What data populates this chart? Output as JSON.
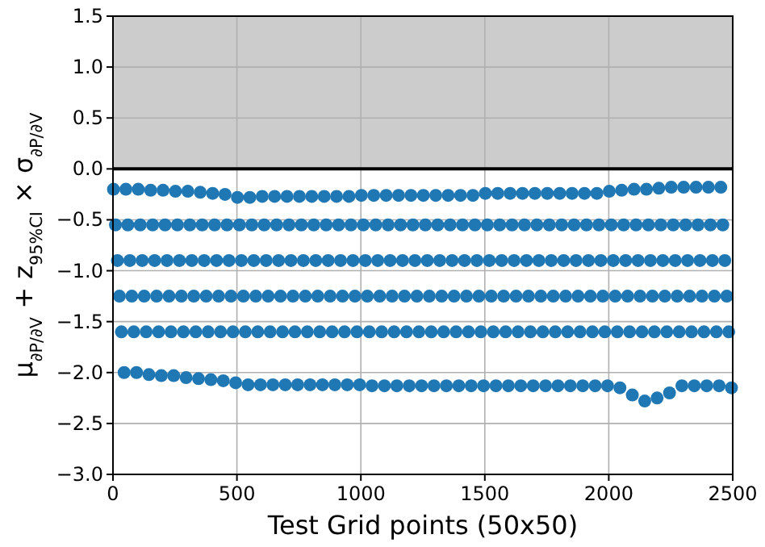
{
  "chart_data": {
    "type": "scatter",
    "xlabel": "Test Grid points (50x50)",
    "ylabel": "μ$_{∂P/∂V}$ + z$_{95%CI}$ × σ$_{∂P/∂V}$",
    "xlim": [
      0,
      2500
    ],
    "xticks": [
      0,
      500,
      1000,
      1500,
      2000,
      2500
    ],
    "ylim": [
      -3.0,
      1.5
    ],
    "yticks": [
      {
        "value": -3,
        "label": "−3.0"
      },
      {
        "value": -2.5,
        "label": "−2.5"
      },
      {
        "value": -2,
        "label": "−2.0"
      },
      {
        "value": -1.5,
        "label": "−1.5"
      },
      {
        "value": -1,
        "label": "−1.0"
      },
      {
        "value": -0.5,
        "label": "−0.5"
      },
      {
        "value": 0,
        "label": "0.0"
      },
      {
        "value": 0.5,
        "label": "0.5"
      },
      {
        "value": 1,
        "label": "1.0"
      },
      {
        "value": 1.5,
        "label": "1.5"
      }
    ],
    "grid": true,
    "marker": "circle",
    "bands": [
      {
        "axis": "y",
        "from": 0,
        "to": 1.5,
        "color": "#cccccc"
      }
    ],
    "ref_lines": [
      {
        "axis": "y",
        "value": 0,
        "color": "#000000"
      }
    ],
    "series": [
      {
        "color": "#1f77b4",
        "x": [
          2,
          10,
          18,
          26,
          34,
          45,
          52,
          60,
          68,
          76,
          84,
          95,
          102,
          110,
          118,
          126,
          134,
          145,
          152,
          160,
          168,
          176,
          184,
          195,
          202,
          210,
          218,
          226,
          234,
          245,
          252,
          260,
          268,
          276,
          284,
          295,
          302,
          310,
          318,
          326,
          334,
          345,
          352,
          360,
          368,
          376,
          384,
          395,
          402,
          410,
          418,
          426,
          434,
          445,
          452,
          460,
          468,
          476,
          484,
          495,
          502,
          510,
          518,
          526,
          534,
          545,
          552,
          560,
          568,
          576,
          584,
          595,
          602,
          610,
          618,
          626,
          634,
          645,
          652,
          660,
          668,
          676,
          684,
          695,
          702,
          710,
          718,
          726,
          734,
          745,
          752,
          760,
          768,
          776,
          784,
          795,
          802,
          810,
          818,
          826,
          834,
          845,
          852,
          860,
          868,
          876,
          884,
          895,
          902,
          910,
          918,
          926,
          934,
          945,
          952,
          960,
          968,
          976,
          984,
          995,
          1002,
          1010,
          1018,
          1026,
          1034,
          1045,
          1052,
          1060,
          1068,
          1076,
          1084,
          1095,
          1102,
          1110,
          1118,
          1126,
          1134,
          1145,
          1152,
          1160,
          1168,
          1176,
          1184,
          1195,
          1202,
          1210,
          1218,
          1226,
          1234,
          1245,
          1252,
          1260,
          1268,
          1276,
          1284,
          1295,
          1302,
          1310,
          1318,
          1326,
          1334,
          1345,
          1352,
          1360,
          1368,
          1376,
          1384,
          1395,
          1402,
          1410,
          1418,
          1426,
          1434,
          1445,
          1452,
          1460,
          1468,
          1476,
          1484,
          1495,
          1502,
          1510,
          1518,
          1526,
          1534,
          1545,
          1552,
          1560,
          1568,
          1576,
          1584,
          1595,
          1602,
          1610,
          1618,
          1626,
          1634,
          1645,
          1652,
          1660,
          1668,
          1676,
          1684,
          1695,
          1702,
          1710,
          1718,
          1726,
          1734,
          1745,
          1752,
          1760,
          1768,
          1776,
          1784,
          1795,
          1802,
          1810,
          1818,
          1826,
          1834,
          1845,
          1852,
          1860,
          1868,
          1876,
          1884,
          1895,
          1902,
          1910,
          1918,
          1926,
          1934,
          1945,
          1952,
          1960,
          1968,
          1976,
          1984,
          1995,
          2002,
          2010,
          2018,
          2026,
          2034,
          2045,
          2052,
          2060,
          2068,
          2076,
          2084,
          2095,
          2102,
          2110,
          2118,
          2126,
          2134,
          2145,
          2152,
          2160,
          2168,
          2176,
          2184,
          2195,
          2202,
          2210,
          2218,
          2226,
          2234,
          2245,
          2252,
          2260,
          2268,
          2276,
          2284,
          2295,
          2302,
          2310,
          2318,
          2326,
          2334,
          2345,
          2352,
          2360,
          2368,
          2376,
          2384,
          2395,
          2402,
          2410,
          2418,
          2426,
          2434,
          2445,
          2452,
          2460,
          2468,
          2476,
          2484,
          2495
        ],
        "values": [
          -0.2,
          -0.55,
          -0.9,
          -1.25,
          -1.6,
          -2.0,
          -0.2,
          -0.55,
          -0.9,
          -1.25,
          -1.6,
          -2.0,
          -0.2,
          -0.55,
          -0.9,
          -1.25,
          -1.6,
          -2.02,
          -0.21,
          -0.55,
          -0.9,
          -1.25,
          -1.6,
          -2.03,
          -0.21,
          -0.55,
          -0.9,
          -1.25,
          -1.6,
          -2.03,
          -0.22,
          -0.55,
          -0.9,
          -1.25,
          -1.6,
          -2.05,
          -0.22,
          -0.55,
          -0.9,
          -1.25,
          -1.6,
          -2.06,
          -0.23,
          -0.55,
          -0.9,
          -1.25,
          -1.6,
          -2.07,
          -0.24,
          -0.55,
          -0.9,
          -1.25,
          -1.6,
          -2.08,
          -0.25,
          -0.55,
          -0.9,
          -1.25,
          -1.6,
          -2.1,
          -0.28,
          -0.55,
          -0.9,
          -1.25,
          -1.6,
          -2.12,
          -0.28,
          -0.55,
          -0.9,
          -1.25,
          -1.6,
          -2.12,
          -0.27,
          -0.55,
          -0.9,
          -1.25,
          -1.6,
          -2.12,
          -0.27,
          -0.55,
          -0.9,
          -1.25,
          -1.6,
          -2.12,
          -0.27,
          -0.55,
          -0.9,
          -1.25,
          -1.6,
          -2.12,
          -0.27,
          -0.55,
          -0.9,
          -1.25,
          -1.6,
          -2.12,
          -0.27,
          -0.55,
          -0.9,
          -1.25,
          -1.6,
          -2.12,
          -0.27,
          -0.55,
          -0.9,
          -1.25,
          -1.6,
          -2.12,
          -0.27,
          -0.55,
          -0.9,
          -1.25,
          -1.6,
          -2.12,
          -0.27,
          -0.55,
          -0.9,
          -1.25,
          -1.6,
          -2.12,
          -0.26,
          -0.55,
          -0.9,
          -1.25,
          -1.6,
          -2.13,
          -0.26,
          -0.55,
          -0.9,
          -1.25,
          -1.6,
          -2.13,
          -0.26,
          -0.55,
          -0.9,
          -1.25,
          -1.6,
          -2.13,
          -0.26,
          -0.55,
          -0.9,
          -1.25,
          -1.6,
          -2.13,
          -0.26,
          -0.55,
          -0.9,
          -1.25,
          -1.6,
          -2.13,
          -0.26,
          -0.55,
          -0.9,
          -1.25,
          -1.6,
          -2.13,
          -0.26,
          -0.55,
          -0.9,
          -1.25,
          -1.6,
          -2.13,
          -0.26,
          -0.55,
          -0.9,
          -1.25,
          -1.6,
          -2.13,
          -0.26,
          -0.55,
          -0.9,
          -1.25,
          -1.6,
          -2.13,
          -0.26,
          -0.55,
          -0.9,
          -1.25,
          -1.6,
          -2.13,
          -0.24,
          -0.55,
          -0.9,
          -1.25,
          -1.6,
          -2.13,
          -0.24,
          -0.55,
          -0.9,
          -1.25,
          -1.6,
          -2.13,
          -0.24,
          -0.55,
          -0.9,
          -1.25,
          -1.6,
          -2.13,
          -0.24,
          -0.55,
          -0.9,
          -1.25,
          -1.6,
          -2.13,
          -0.24,
          -0.55,
          -0.9,
          -1.25,
          -1.6,
          -2.13,
          -0.24,
          -0.55,
          -0.9,
          -1.25,
          -1.6,
          -2.13,
          -0.24,
          -0.55,
          -0.9,
          -1.25,
          -1.6,
          -2.13,
          -0.24,
          -0.55,
          -0.9,
          -1.25,
          -1.6,
          -2.13,
          -0.24,
          -0.55,
          -0.9,
          -1.25,
          -1.6,
          -2.13,
          -0.24,
          -0.55,
          -0.9,
          -1.25,
          -1.6,
          -2.13,
          -0.22,
          -0.55,
          -0.9,
          -1.25,
          -1.6,
          -2.15,
          -0.21,
          -0.55,
          -0.9,
          -1.25,
          -1.6,
          -2.22,
          -0.2,
          -0.55,
          -0.9,
          -1.25,
          -1.6,
          -2.28,
          -0.2,
          -0.55,
          -0.9,
          -1.25,
          -1.6,
          -2.25,
          -0.19,
          -0.55,
          -0.9,
          -1.25,
          -1.6,
          -2.2,
          -0.18,
          -0.55,
          -0.9,
          -1.25,
          -1.6,
          -2.13,
          -0.18,
          -0.55,
          -0.9,
          -1.25,
          -1.6,
          -2.13,
          -0.18,
          -0.55,
          -0.9,
          -1.25,
          -1.6,
          -2.13,
          -0.18,
          -0.55,
          -0.9,
          -1.25,
          -1.6,
          -2.13,
          -0.18,
          -0.55,
          -0.9,
          -1.25,
          -1.6,
          -2.15
        ]
      }
    ]
  }
}
